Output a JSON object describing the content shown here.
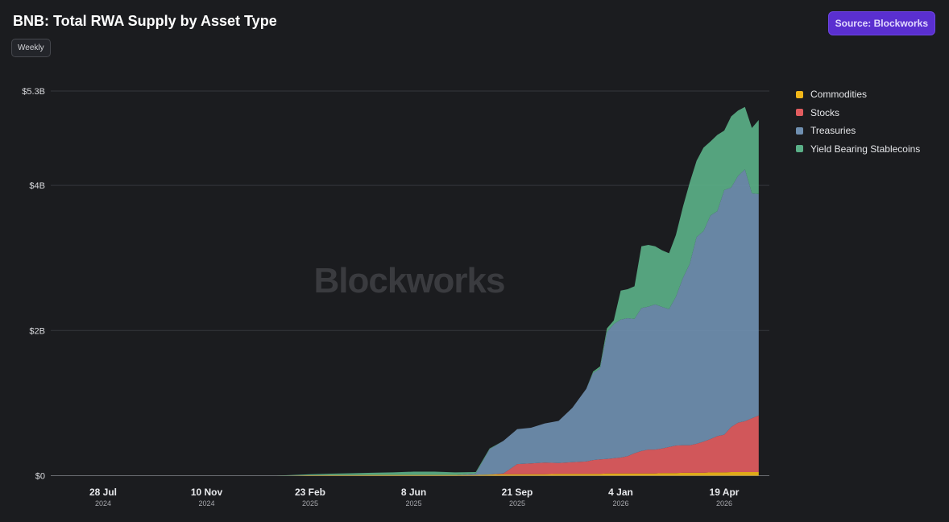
{
  "header": {
    "title": "BNB: Total RWA Supply by Asset Type",
    "frequency": "Weekly",
    "source": "Source: Blockworks"
  },
  "watermark": "Blockworks",
  "colors": {
    "background": "#1b1c1f",
    "source_button": "#5a2fd0"
  },
  "chart_data": {
    "type": "area",
    "stacked": true,
    "grid": true,
    "legend_position": "right",
    "ylim": [
      0,
      5300000000
    ],
    "y_ticks": [
      {
        "value": 0,
        "label": "$0"
      },
      {
        "value": 2000000000,
        "label": "$2B"
      },
      {
        "value": 4000000000,
        "label": "$4B"
      },
      {
        "value": 5300000000,
        "label": "$5.3B"
      }
    ],
    "x_ticks": [
      {
        "date": "2024-07-28",
        "label": "28 Jul",
        "year": "2024"
      },
      {
        "date": "2024-11-10",
        "label": "10 Nov",
        "year": "2024"
      },
      {
        "date": "2025-02-23",
        "label": "23 Feb",
        "year": "2025"
      },
      {
        "date": "2025-06-08",
        "label": "8 Jun",
        "year": "2025"
      },
      {
        "date": "2025-09-21",
        "label": "21 Sep",
        "year": "2025"
      },
      {
        "date": "2026-01-04",
        "label": "4 Jan",
        "year": "2026"
      },
      {
        "date": "2026-04-19",
        "label": "19 Apr",
        "year": "2026"
      }
    ],
    "x": [
      "2024-06-23",
      "2024-07-28",
      "2024-09-01",
      "2024-10-06",
      "2024-11-10",
      "2024-12-15",
      "2025-01-19",
      "2025-02-23",
      "2025-03-16",
      "2025-04-06",
      "2025-04-27",
      "2025-05-18",
      "2025-06-08",
      "2025-06-29",
      "2025-07-20",
      "2025-08-10",
      "2025-08-24",
      "2025-09-07",
      "2025-09-21",
      "2025-10-05",
      "2025-10-19",
      "2025-11-02",
      "2025-11-16",
      "2025-11-30",
      "2025-12-07",
      "2025-12-14",
      "2025-12-21",
      "2025-12-28",
      "2026-01-04",
      "2026-01-11",
      "2026-01-18",
      "2026-01-25",
      "2026-02-01",
      "2026-02-08",
      "2026-02-15",
      "2026-02-22",
      "2026-03-01",
      "2026-03-08",
      "2026-03-15",
      "2026-03-22",
      "2026-03-29",
      "2026-04-05",
      "2026-04-12",
      "2026-04-19",
      "2026-04-26",
      "2026-05-03",
      "2026-05-10",
      "2026-05-17",
      "2026-05-24"
    ],
    "series": [
      {
        "name": "Commodities",
        "color": "#f0b619",
        "values": [
          0,
          0,
          0,
          0,
          0,
          0,
          0,
          0.005,
          0.008,
          0.008,
          0.01,
          0.01,
          0.01,
          0.01,
          0.01,
          0.01,
          0.015,
          0.02,
          0.02,
          0.02,
          0.02,
          0.025,
          0.025,
          0.025,
          0.025,
          0.025,
          0.03,
          0.03,
          0.03,
          0.03,
          0.03,
          0.03,
          0.03,
          0.03,
          0.035,
          0.035,
          0.035,
          0.04,
          0.04,
          0.04,
          0.04,
          0.045,
          0.045,
          0.045,
          0.05,
          0.05,
          0.05,
          0.05,
          0.05
        ]
      },
      {
        "name": "Stocks",
        "color": "#e15c5f",
        "values": [
          0,
          0,
          0,
          0,
          0,
          0,
          0,
          0,
          0,
          0,
          0,
          0,
          0,
          0,
          0,
          0,
          0,
          0.01,
          0.14,
          0.15,
          0.16,
          0.15,
          0.16,
          0.17,
          0.19,
          0.2,
          0.2,
          0.21,
          0.22,
          0.24,
          0.28,
          0.31,
          0.33,
          0.33,
          0.34,
          0.36,
          0.38,
          0.38,
          0.38,
          0.4,
          0.43,
          0.46,
          0.5,
          0.52,
          0.62,
          0.68,
          0.7,
          0.74,
          0.78
        ]
      },
      {
        "name": "Treasuries",
        "color": "#6f8fb0",
        "values": [
          0,
          0,
          0,
          0,
          0,
          0,
          0,
          0,
          0,
          0,
          0,
          0,
          0,
          0,
          0,
          0.02,
          0.35,
          0.45,
          0.48,
          0.49,
          0.54,
          0.58,
          0.75,
          1.0,
          1.2,
          1.25,
          1.75,
          1.85,
          1.9,
          1.9,
          1.85,
          1.97,
          1.97,
          2.0,
          1.95,
          1.9,
          2.05,
          2.3,
          2.5,
          2.85,
          2.9,
          3.08,
          3.1,
          3.37,
          3.3,
          3.4,
          3.47,
          3.1,
          3.05
        ]
      },
      {
        "name": "Yield Bearing Stablecoins",
        "color": "#5aaf87",
        "values": [
          0,
          0,
          0,
          0,
          0,
          0,
          0,
          0.015,
          0.02,
          0.025,
          0.03,
          0.035,
          0.045,
          0.045,
          0.035,
          0.02,
          0.01,
          0,
          0,
          0,
          0,
          0,
          0,
          0,
          0.02,
          0.03,
          0.05,
          0.05,
          0.4,
          0.4,
          0.45,
          0.85,
          0.85,
          0.8,
          0.78,
          0.77,
          0.85,
          0.98,
          1.12,
          1.05,
          1.15,
          1.02,
          1.05,
          0.82,
          0.98,
          0.9,
          0.86,
          0.9,
          1.02
        ]
      }
    ]
  }
}
